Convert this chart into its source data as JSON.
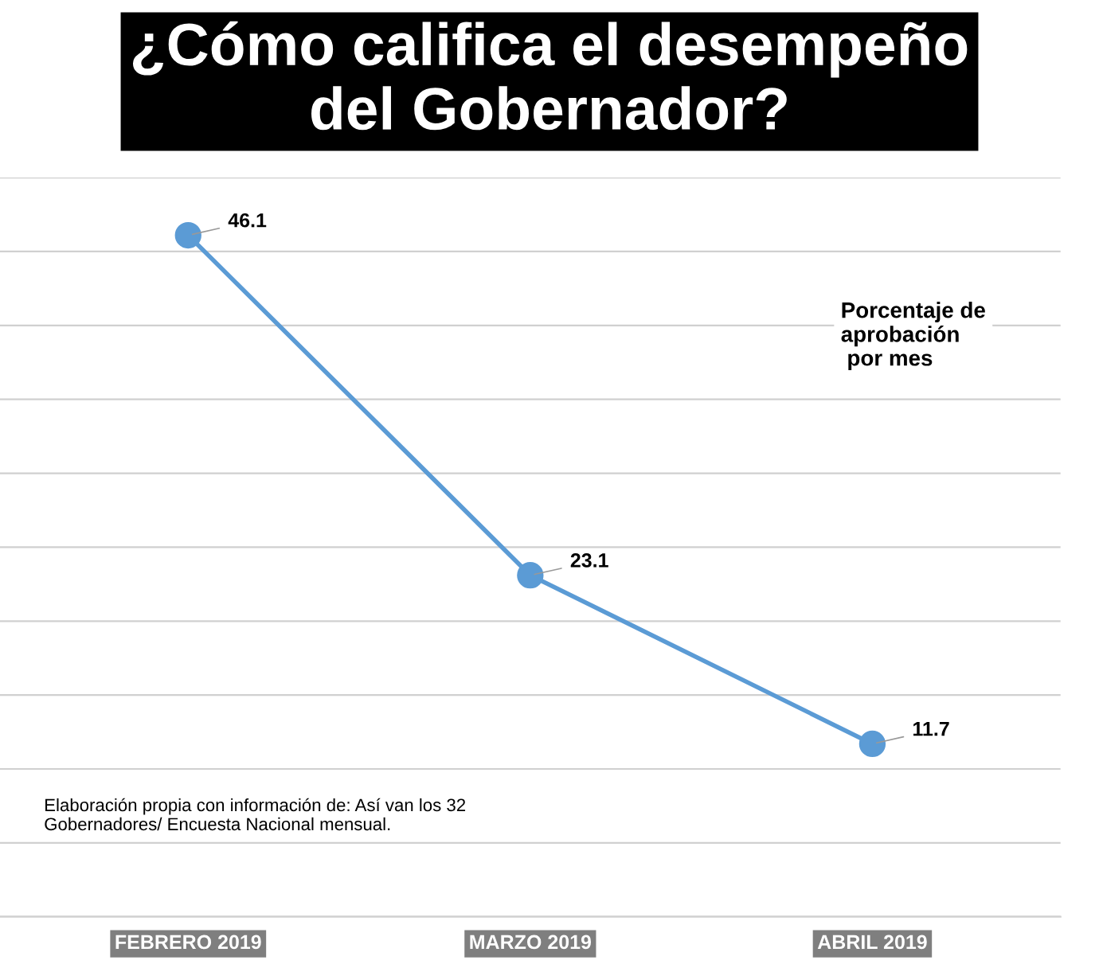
{
  "chart_data": {
    "type": "line",
    "title": "¿Cómo califica el desempeño\ndel Gobernador?",
    "categories": [
      "FEBRERO 2019",
      "MARZO 2019",
      "ABRIL 2019"
    ],
    "series": [
      {
        "color": "#5b9bd5",
        "values": [
          46.1,
          23.1,
          11.7
        ]
      }
    ],
    "ylim": [
      0,
      50
    ],
    "yticks": [
      {
        "value": 0,
        "label": null
      },
      {
        "value": 5,
        "label": null
      },
      {
        "value": 10,
        "label": null
      },
      {
        "value": 15,
        "label": null
      },
      {
        "value": 20,
        "label": null
      },
      {
        "value": 25,
        "label": null
      },
      {
        "value": 30,
        "label": null
      },
      {
        "value": 35,
        "label": null
      },
      {
        "value": 40,
        "label": null
      },
      {
        "value": 45,
        "label": null
      },
      {
        "value": 50,
        "label": null
      }
    ],
    "tick_labels": "x",
    "grid": "y",
    "marker": "circle",
    "line_style": "solid",
    "data_labels": true,
    "legend": false,
    "annotations": [
      "Porcentaje de\naprobación\n por mes",
      "Elaboración propia con información de: Así van los 32\nGobernadores/ Encuesta Nacional mensual."
    ]
  }
}
